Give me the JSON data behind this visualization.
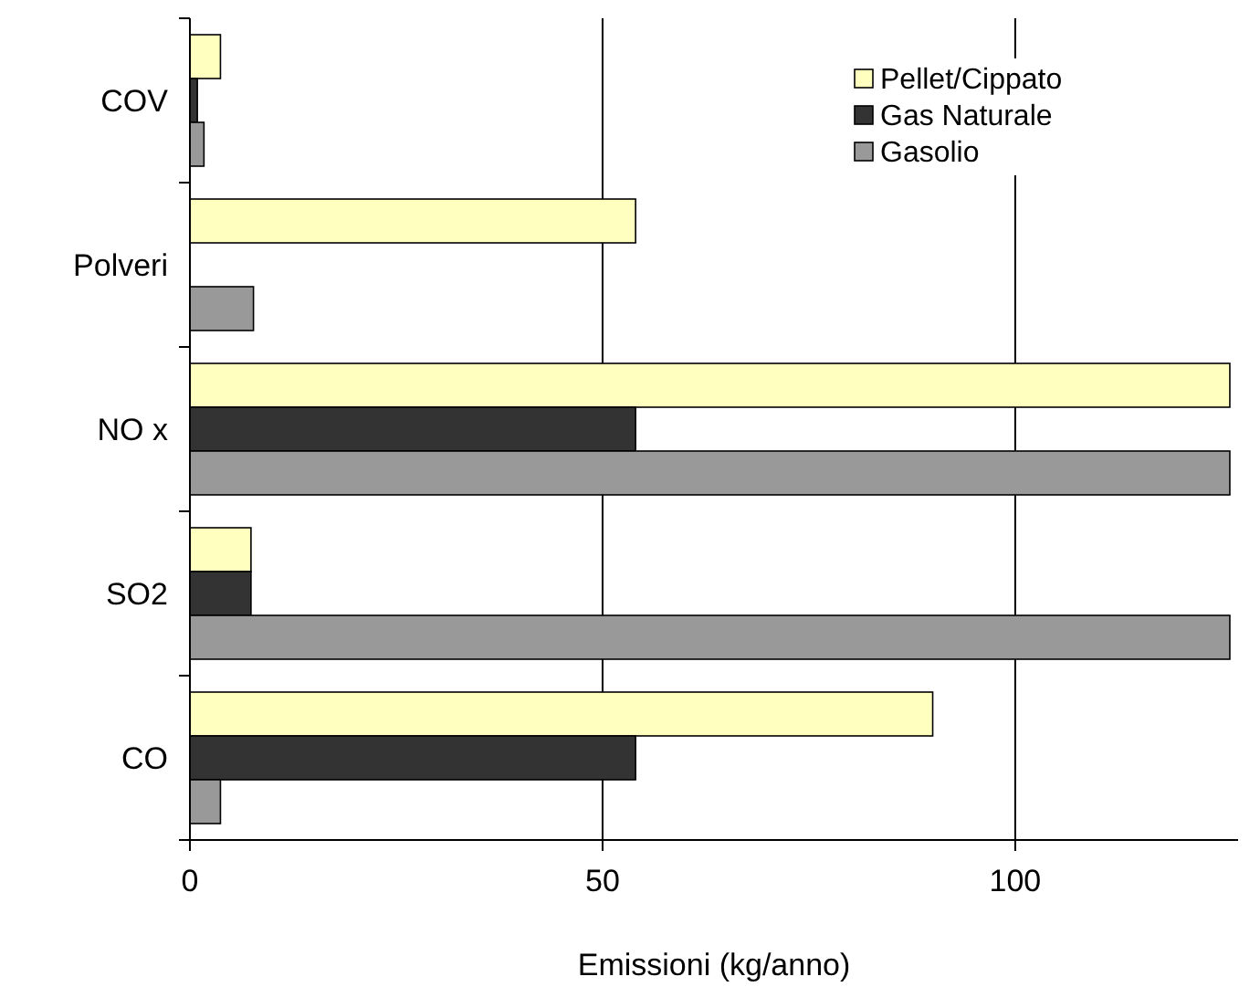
{
  "chart_data": {
    "type": "bar",
    "orientation": "horizontal",
    "xlabel": "Emissioni (kg/anno)",
    "categories": [
      "COV",
      "Polveri",
      "NO x",
      "SO2",
      "CO"
    ],
    "series": [
      {
        "name": "Pellet/Cippato",
        "color": "#ffffc0",
        "values": [
          3.7,
          54,
          126,
          7.4,
          90
        ]
      },
      {
        "name": "Gas Naturale",
        "color": "#333333",
        "values": [
          0.9,
          null,
          54,
          7.4,
          54
        ]
      },
      {
        "name": "Gasolio",
        "color": "#999999",
        "values": [
          1.7,
          7.7,
          126,
          126,
          3.7
        ]
      }
    ],
    "xlim": [
      0,
      127
    ],
    "xticks": [
      0,
      50,
      100
    ],
    "grid": "x",
    "legend": "top right"
  }
}
